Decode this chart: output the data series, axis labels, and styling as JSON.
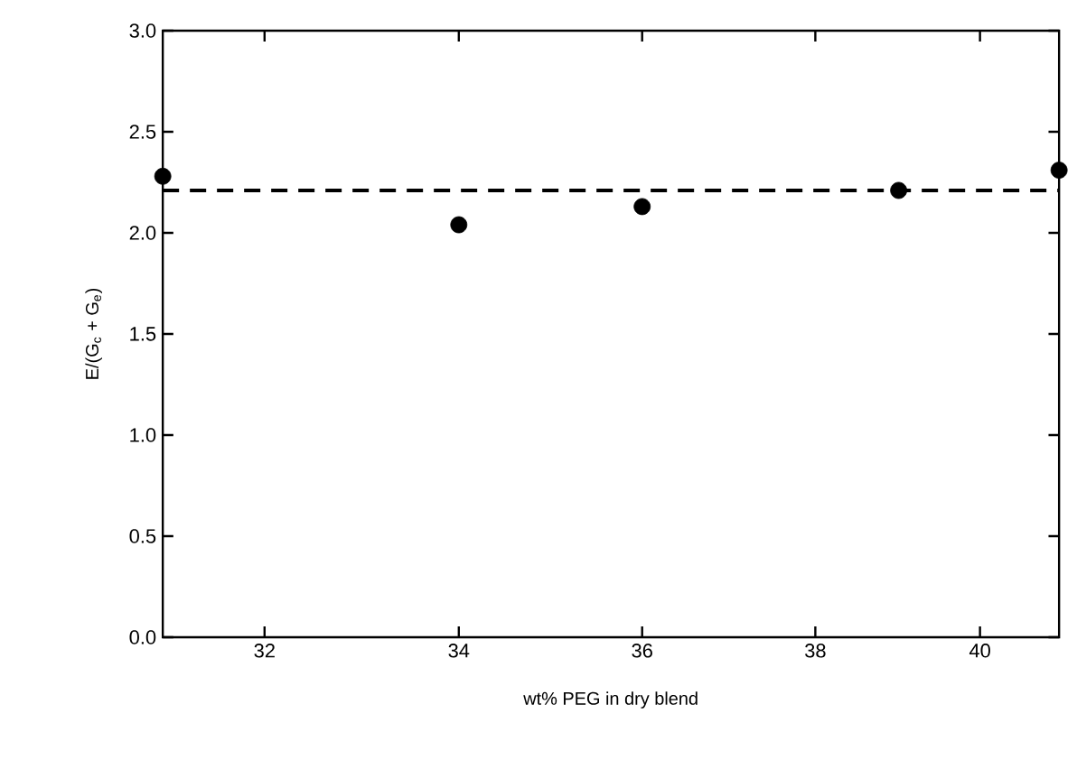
{
  "chart_data": {
    "type": "scatter",
    "xlabel": "wt% PEG in dry blend",
    "ylabel": "E/(G$_{c}$ + G$_{e}$)",
    "x": [
      31,
      34,
      36,
      39,
      41
    ],
    "values": [
      2.28,
      2.04,
      2.13,
      2.21,
      2.31
    ],
    "color": "#000000",
    "marker": "circle",
    "log": "x",
    "xlim": [
      31,
      41
    ],
    "xticks": [
      32,
      34,
      36,
      38,
      40
    ],
    "ylim": [
      0,
      3
    ],
    "yticks": [
      {
        "value": 0,
        "label": "0.0"
      },
      {
        "value": 0.5,
        "label": "0.5"
      },
      {
        "value": 1,
        "label": "1.0"
      },
      {
        "value": 1.5,
        "label": "1.5"
      },
      {
        "value": 2,
        "label": "2.0"
      },
      {
        "value": 2.5,
        "label": "2.5"
      },
      {
        "value": 3,
        "label": "3.0"
      }
    ],
    "ref_lines": [
      {
        "axis": "y",
        "value": 2.21,
        "color": "#000000",
        "line_style": "dashed"
      }
    ],
    "grid": false
  }
}
